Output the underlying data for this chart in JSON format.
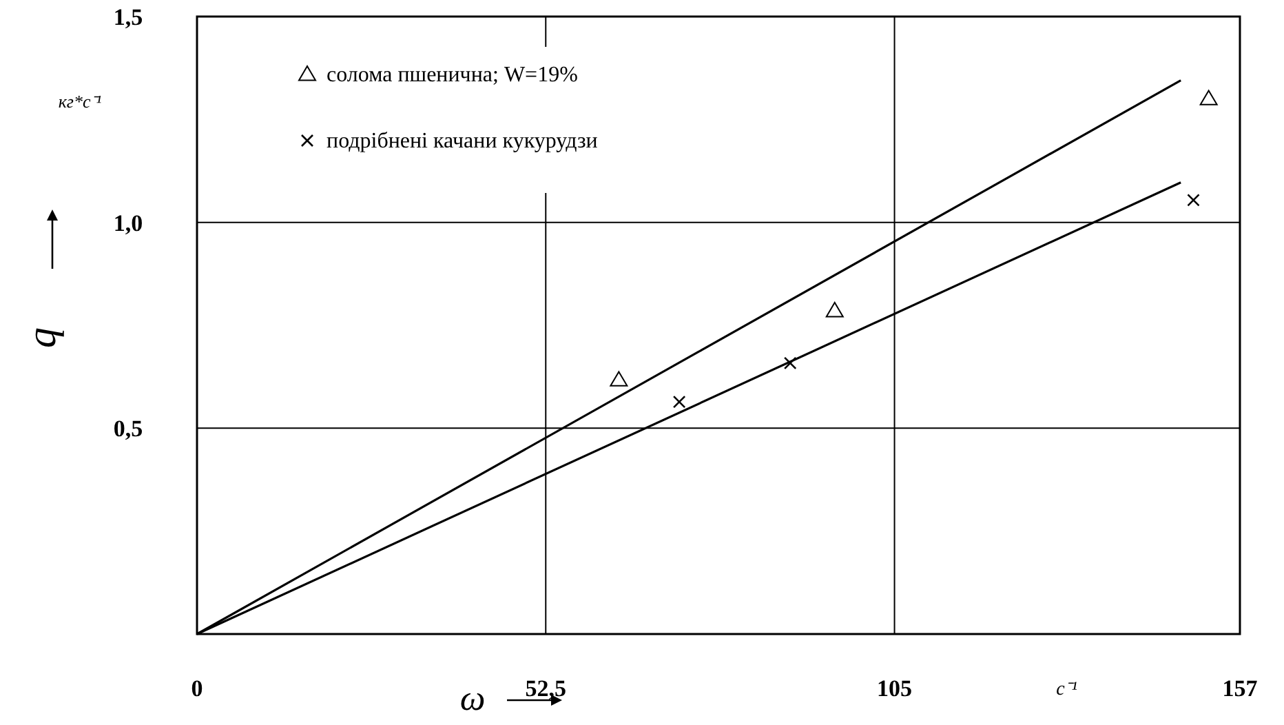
{
  "chart_data": {
    "type": "scatter",
    "xlabel": "ω",
    "ylabel": "q",
    "xlim": [
      0,
      157
    ],
    "ylim": [
      0,
      1.5
    ],
    "xticks": [
      0,
      {
        "value": 52.5,
        "label": "52,5"
      },
      105,
      157
    ],
    "yticks": [
      {
        "value": 0,
        "label": null
      },
      {
        "value": 0.5,
        "label": "0,5"
      },
      {
        "value": 1,
        "label": "1,0"
      },
      {
        "value": 1.5,
        "label": "1,5"
      }
    ],
    "series": [
      {
        "type": "line",
        "color": "#000000",
        "x": [
          0,
          148.1
        ],
        "values": [
          0,
          1.345
        ]
      },
      {
        "type": "line",
        "color": "#000000",
        "x": [
          0,
          148.1
        ],
        "values": [
          0,
          1.097
        ]
      },
      {
        "name": "солома пшенична; W=19%",
        "marker": "triangle",
        "color": "#000000",
        "x": [
          63.5,
          96,
          152.3
        ],
        "values": [
          0.617,
          0.785,
          1.3
        ]
      },
      {
        "name": "подрібнені качани кукурудзи",
        "marker": "cross",
        "color": "#000000",
        "x": [
          72.6,
          89.3,
          150
        ],
        "values": [
          0.564,
          0.658,
          1.054
        ]
      }
    ],
    "annotations": [
      "кг*с⁻¹",
      "с⁻¹"
    ],
    "grid": true,
    "legend": "top left"
  }
}
